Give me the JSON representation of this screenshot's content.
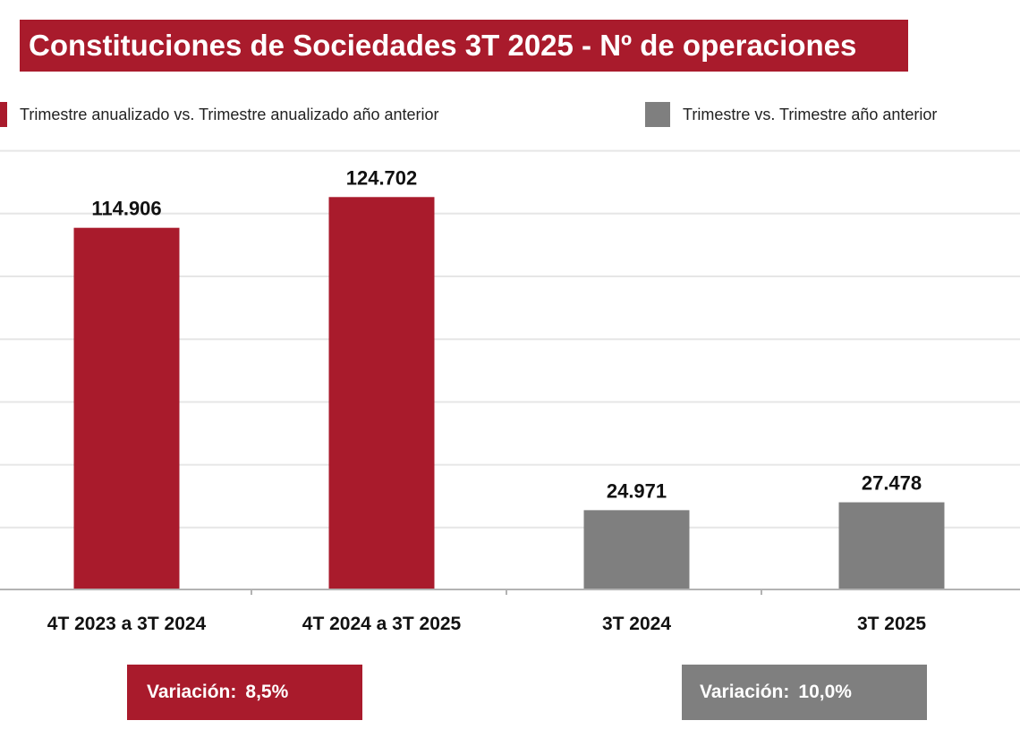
{
  "title": "Constituciones de Sociedades 3T 2025 - Nº de operaciones",
  "legend": [
    {
      "label": "Trimestre anualizado vs. Trimestre anualizado año anterior",
      "color": "#a91b2c"
    },
    {
      "label": "Trimestre vs. Trimestre año anterior",
      "color": "#7f7f7f"
    }
  ],
  "chart_data": {
    "type": "bar",
    "categories": [
      "4T 2023 a 3T 2024",
      "4T 2024 a 3T 2025",
      "3T 2024",
      "3T 2025"
    ],
    "values": [
      114906,
      124702,
      24971,
      27478
    ],
    "value_labels": [
      "114.906",
      "124.702",
      "24.971",
      "27.478"
    ],
    "colors": [
      "#a91b2c",
      "#a91b2c",
      "#7f7f7f",
      "#7f7f7f"
    ],
    "ylim": [
      0,
      140000
    ],
    "grid": true,
    "legend_position": "top"
  },
  "variations": [
    {
      "label": "Variación:",
      "value": "8,5%",
      "color": "#a91b2c"
    },
    {
      "label": "Variación:",
      "value": "10,0%",
      "color": "#7f7f7f"
    }
  ]
}
